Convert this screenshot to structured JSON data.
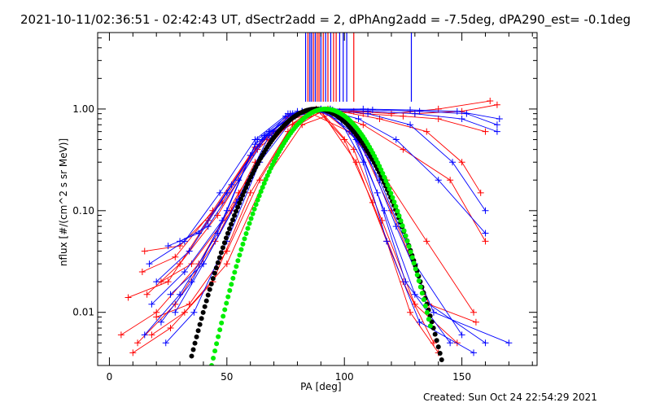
{
  "chart_data": {
    "type": "line",
    "title": "2021-10-11/02:36:51 - 02:42:43 UT, dSectr2add = 2, dPhAng2add = -7.5deg, dPA290_est= -0.1deg",
    "xlabel": "PA [deg]",
    "ylabel": "nflux [#/(cm^2 s sr MeV)]",
    "xlim": [
      -5,
      182
    ],
    "ylim": [
      0.003,
      5.65
    ],
    "yscale": "log",
    "xticks": [
      0,
      50,
      100,
      150
    ],
    "xtick_labels": [
      "0",
      "50",
      "100",
      "150"
    ],
    "yticks": [
      0.01,
      0.1,
      1.0
    ],
    "ytick_labels": [
      "0.01",
      "0.10",
      "1.00"
    ],
    "grid": false,
    "colors": {
      "red": "#ff0000",
      "blue": "#0000ff",
      "black": "#000000",
      "green": "#00ee00"
    },
    "red_series": [
      [
        [
          12,
          0.005
        ],
        [
          28,
          0.012
        ],
        [
          45,
          0.05
        ],
        [
          62,
          0.3
        ],
        [
          78,
          0.8
        ],
        [
          90,
          0.95
        ],
        [
          105,
          0.3
        ],
        [
          118,
          0.05
        ],
        [
          128,
          0.01
        ],
        [
          140,
          0.004
        ]
      ],
      [
        [
          8,
          0.014
        ],
        [
          25,
          0.02
        ],
        [
          42,
          0.08
        ],
        [
          60,
          0.35
        ],
        [
          76,
          0.85
        ],
        [
          88,
          1.0
        ],
        [
          100,
          0.5
        ],
        [
          112,
          0.12
        ],
        [
          125,
          0.02
        ],
        [
          138,
          0.005
        ]
      ],
      [
        [
          15,
          0.04
        ],
        [
          30,
          0.045
        ],
        [
          48,
          0.12
        ],
        [
          64,
          0.45
        ],
        [
          80,
          0.9
        ],
        [
          92,
          0.95
        ],
        [
          108,
          0.7
        ],
        [
          125,
          0.4
        ],
        [
          145,
          0.2
        ],
        [
          160,
          0.05
        ]
      ],
      [
        [
          18,
          0.006
        ],
        [
          32,
          0.01
        ],
        [
          50,
          0.03
        ],
        [
          66,
          0.2
        ],
        [
          82,
          0.7
        ],
        [
          95,
          0.9
        ],
        [
          110,
          0.95
        ],
        [
          130,
          0.9
        ],
        [
          150,
          0.95
        ],
        [
          165,
          1.1
        ]
      ],
      [
        [
          5,
          0.006
        ],
        [
          20,
          0.01
        ],
        [
          38,
          0.03
        ],
        [
          55,
          0.15
        ],
        [
          72,
          0.6
        ],
        [
          86,
          0.9
        ],
        [
          102,
          0.6
        ],
        [
          118,
          0.2
        ],
        [
          135,
          0.05
        ],
        [
          155,
          0.01
        ]
      ],
      [
        [
          22,
          0.02
        ],
        [
          35,
          0.03
        ],
        [
          52,
          0.1
        ],
        [
          68,
          0.5
        ],
        [
          84,
          0.9
        ],
        [
          98,
          0.95
        ],
        [
          115,
          0.8
        ],
        [
          135,
          0.6
        ],
        [
          150,
          0.3
        ],
        [
          158,
          0.15
        ]
      ],
      [
        [
          10,
          0.004
        ],
        [
          26,
          0.007
        ],
        [
          44,
          0.02
        ],
        [
          60,
          0.15
        ],
        [
          76,
          0.6
        ],
        [
          90,
          0.95
        ],
        [
          104,
          0.4
        ],
        [
          116,
          0.08
        ],
        [
          130,
          0.012
        ],
        [
          148,
          0.005
        ]
      ],
      [
        [
          16,
          0.015
        ],
        [
          30,
          0.03
        ],
        [
          46,
          0.09
        ],
        [
          63,
          0.4
        ],
        [
          79,
          0.85
        ],
        [
          93,
          1.0
        ],
        [
          108,
          0.9
        ],
        [
          125,
          0.85
        ],
        [
          140,
          0.8
        ],
        [
          160,
          0.6
        ]
      ],
      [
        [
          20,
          0.009
        ],
        [
          34,
          0.012
        ],
        [
          50,
          0.04
        ],
        [
          64,
          0.2
        ],
        [
          78,
          0.7
        ],
        [
          91,
          0.95
        ],
        [
          106,
          0.5
        ],
        [
          120,
          0.1
        ],
        [
          136,
          0.012
        ],
        [
          156,
          0.008
        ]
      ],
      [
        [
          14,
          0.025
        ],
        [
          28,
          0.035
        ],
        [
          44,
          0.1
        ],
        [
          62,
          0.42
        ],
        [
          77,
          0.88
        ],
        [
          89,
          0.98
        ],
        [
          104,
          0.95
        ],
        [
          120,
          0.9
        ],
        [
          140,
          1.0
        ],
        [
          162,
          1.2
        ]
      ]
    ],
    "blue_series": [
      [
        [
          22,
          0.008
        ],
        [
          35,
          0.02
        ],
        [
          50,
          0.1
        ],
        [
          63,
          0.5
        ],
        [
          77,
          0.9
        ],
        [
          90,
          1.0
        ],
        [
          103,
          0.6
        ],
        [
          114,
          0.15
        ],
        [
          126,
          0.02
        ],
        [
          145,
          0.005
        ]
      ],
      [
        [
          15,
          0.006
        ],
        [
          30,
          0.015
        ],
        [
          46,
          0.06
        ],
        [
          60,
          0.35
        ],
        [
          75,
          0.85
        ],
        [
          88,
          0.98
        ],
        [
          102,
          0.7
        ],
        [
          115,
          0.2
        ],
        [
          130,
          0.03
        ],
        [
          150,
          0.006
        ]
      ],
      [
        [
          25,
          0.045
        ],
        [
          38,
          0.06
        ],
        [
          52,
          0.18
        ],
        [
          66,
          0.55
        ],
        [
          80,
          0.92
        ],
        [
          94,
          1.0
        ],
        [
          110,
          0.95
        ],
        [
          130,
          0.9
        ],
        [
          150,
          0.8
        ],
        [
          165,
          0.6
        ]
      ],
      [
        [
          18,
          0.012
        ],
        [
          32,
          0.025
        ],
        [
          48,
          0.08
        ],
        [
          62,
          0.45
        ],
        [
          78,
          0.9
        ],
        [
          92,
          0.98
        ],
        [
          106,
          0.8
        ],
        [
          122,
          0.5
        ],
        [
          140,
          0.2
        ],
        [
          160,
          0.06
        ]
      ],
      [
        [
          28,
          0.01
        ],
        [
          40,
          0.03
        ],
        [
          54,
          0.12
        ],
        [
          68,
          0.55
        ],
        [
          82,
          0.95
        ],
        [
          96,
          0.95
        ],
        [
          108,
          0.3
        ],
        [
          118,
          0.05
        ],
        [
          132,
          0.008
        ],
        [
          155,
          0.004
        ]
      ],
      [
        [
          20,
          0.02
        ],
        [
          34,
          0.04
        ],
        [
          50,
          0.15
        ],
        [
          65,
          0.5
        ],
        [
          80,
          0.95
        ],
        [
          94,
          1.0
        ],
        [
          112,
          0.98
        ],
        [
          132,
          0.95
        ],
        [
          152,
          0.9
        ],
        [
          165,
          0.7
        ]
      ],
      [
        [
          30,
          0.05
        ],
        [
          42,
          0.07
        ],
        [
          55,
          0.2
        ],
        [
          68,
          0.6
        ],
        [
          82,
          0.95
        ],
        [
          95,
          0.98
        ],
        [
          110,
          0.9
        ],
        [
          128,
          0.7
        ],
        [
          146,
          0.3
        ],
        [
          160,
          0.1
        ]
      ],
      [
        [
          24,
          0.005
        ],
        [
          36,
          0.01
        ],
        [
          50,
          0.05
        ],
        [
          64,
          0.3
        ],
        [
          79,
          0.85
        ],
        [
          92,
          0.97
        ],
        [
          105,
          0.5
        ],
        [
          117,
          0.1
        ],
        [
          130,
          0.015
        ],
        [
          160,
          0.005
        ]
      ],
      [
        [
          17,
          0.03
        ],
        [
          32,
          0.05
        ],
        [
          47,
          0.15
        ],
        [
          62,
          0.5
        ],
        [
          76,
          0.9
        ],
        [
          90,
          1.0
        ],
        [
          108,
          1.0
        ],
        [
          128,
          0.98
        ],
        [
          148,
          0.95
        ],
        [
          166,
          0.8
        ]
      ],
      [
        [
          26,
          0.015
        ],
        [
          40,
          0.03
        ],
        [
          55,
          0.13
        ],
        [
          70,
          0.6
        ],
        [
          84,
          0.95
        ],
        [
          97,
          0.9
        ],
        [
          110,
          0.35
        ],
        [
          122,
          0.07
        ],
        [
          138,
          0.01
        ],
        [
          170,
          0.005
        ]
      ]
    ],
    "fits": [
      {
        "name": "fit-black",
        "color": "black",
        "center_pa": 88,
        "peak": 1.0,
        "pa_at_0.003": 54,
        "pa_range": [
          35,
          142
        ]
      },
      {
        "name": "fit-green",
        "color": "green",
        "center_pa": 92,
        "peak": 1.0,
        "pa_at_0.003": 48.5,
        "pa_range": [
          40,
          137
        ]
      }
    ],
    "top_markers": [
      {
        "pa": 83.5,
        "color": "blue"
      },
      {
        "pa": 84.5,
        "color": "red"
      },
      {
        "pa": 85.3,
        "color": "blue"
      },
      {
        "pa": 86,
        "color": "blue"
      },
      {
        "pa": 86.8,
        "color": "red"
      },
      {
        "pa": 87.6,
        "color": "blue"
      },
      {
        "pa": 88.4,
        "color": "red"
      },
      {
        "pa": 89.2,
        "color": "red"
      },
      {
        "pa": 90,
        "color": "blue"
      },
      {
        "pa": 91,
        "color": "red"
      },
      {
        "pa": 92,
        "color": "blue"
      },
      {
        "pa": 93,
        "color": "red"
      },
      {
        "pa": 94.2,
        "color": "blue"
      },
      {
        "pa": 95.4,
        "color": "red"
      },
      {
        "pa": 96.5,
        "color": "red"
      },
      {
        "pa": 98,
        "color": "blue"
      },
      {
        "pa": 99.5,
        "color": "blue"
      },
      {
        "pa": 101,
        "color": "blue"
      },
      {
        "pa": 104,
        "color": "red"
      },
      {
        "pa": 128.5,
        "color": "blue"
      }
    ]
  },
  "footer": {
    "created": "Created: Sun Oct 24 22:54:29 2021"
  }
}
